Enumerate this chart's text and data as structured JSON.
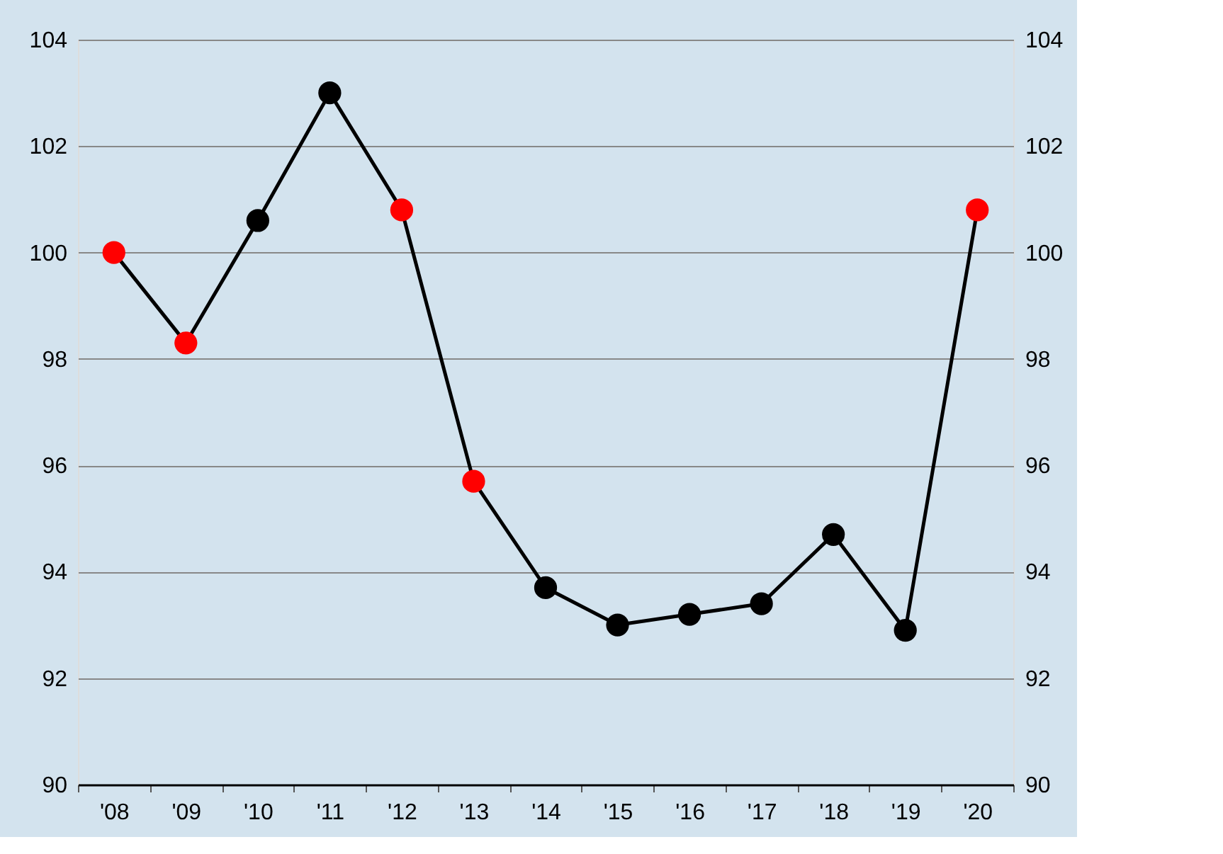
{
  "chart_data": {
    "type": "line",
    "categories": [
      "'08",
      "'09",
      "'10",
      "'11",
      "'12",
      "'13",
      "'14",
      "'15",
      "'16",
      "'17",
      "'18",
      "'19",
      "'20"
    ],
    "series": [
      {
        "color": "#000000",
        "values": [
          100.0,
          98.3,
          100.6,
          103.0,
          100.8,
          95.7,
          93.7,
          93.0,
          93.2,
          93.4,
          94.7,
          92.9,
          100.8
        ],
        "colors": [
          "#ff0000",
          "#ff0000",
          "#000000",
          "#000000",
          "#ff0000",
          "#ff0000",
          "#000000",
          "#000000",
          "#000000",
          "#000000",
          "#000000",
          "#000000",
          "#ff0000"
        ]
      }
    ],
    "ylim": [
      90,
      104
    ],
    "yticks": [
      90,
      92,
      94,
      96,
      98,
      100,
      102,
      104
    ],
    "y2lim": [
      90,
      104
    ],
    "y2ticks": [
      90,
      92,
      94,
      96,
      98,
      100,
      102,
      104
    ],
    "grid": "y",
    "marker": "circle",
    "line_style": "solid"
  }
}
